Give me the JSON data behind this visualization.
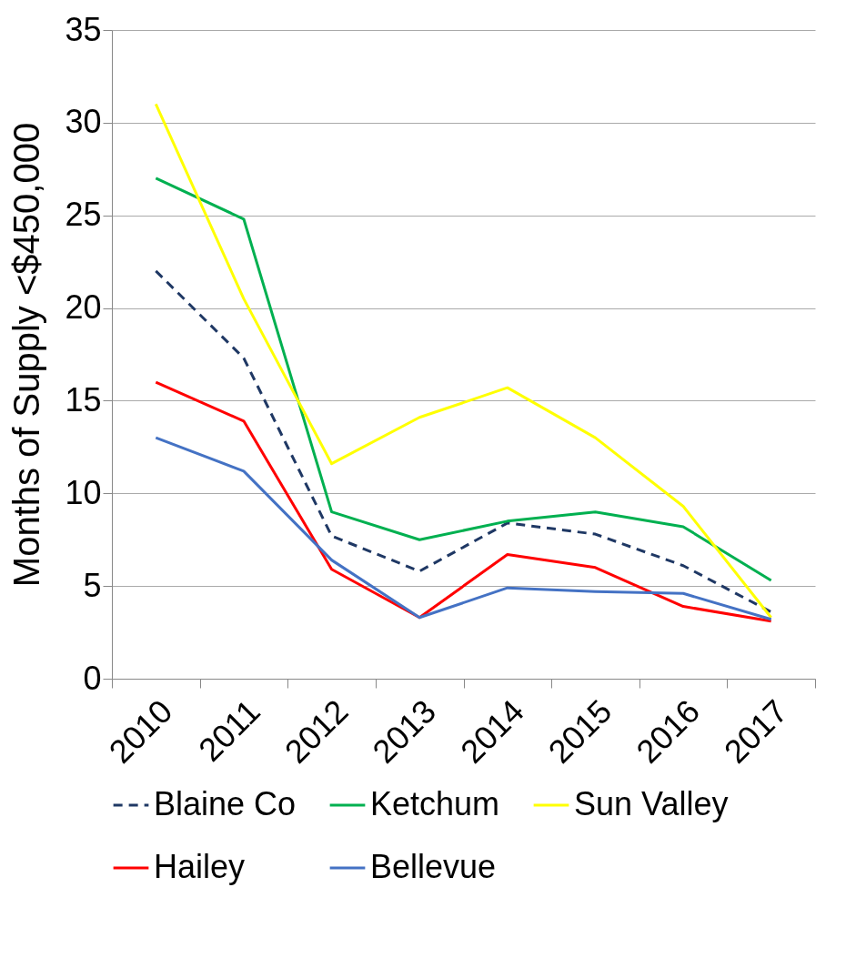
{
  "chart_data": {
    "type": "line",
    "ylabel": "Months of Supply <$450,000",
    "categories": [
      "2010",
      "2011",
      "2012",
      "2013",
      "2014",
      "2015",
      "2016",
      "2017"
    ],
    "series": [
      {
        "name": "Blaine Co",
        "color": "#1f3864",
        "line_style": "dashed",
        "values": [
          22,
          17.3,
          7.7,
          5.8,
          8.4,
          7.8,
          6.1,
          3.6
        ]
      },
      {
        "name": "Ketchum",
        "color": "#00b050",
        "line_style": "solid",
        "values": [
          27,
          24.8,
          9.0,
          7.5,
          8.5,
          9.0,
          8.2,
          5.3
        ]
      },
      {
        "name": "Sun Valley",
        "color": "#ffff00",
        "line_style": "solid",
        "values": [
          31,
          20.5,
          11.6,
          14.1,
          15.7,
          13.0,
          9.3,
          3.3
        ]
      },
      {
        "name": "Hailey",
        "color": "#ff0000",
        "line_style": "solid",
        "values": [
          16,
          13.9,
          5.9,
          3.3,
          6.7,
          6.0,
          3.9,
          3.1
        ]
      },
      {
        "name": "Bellevue",
        "color": "#4472c4",
        "line_style": "solid",
        "values": [
          13,
          11.2,
          6.4,
          3.3,
          4.9,
          4.7,
          4.6,
          3.2
        ]
      }
    ],
    "ylim": [
      0,
      35
    ],
    "yticks": [
      0,
      5,
      10,
      15,
      20,
      25,
      30,
      35
    ],
    "grid": "y",
    "legend": "bottom"
  }
}
